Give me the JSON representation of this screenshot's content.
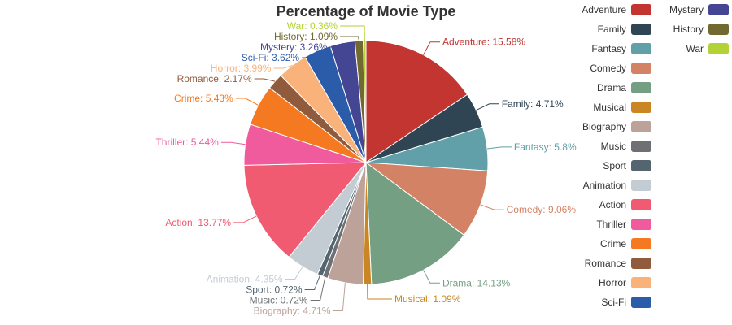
{
  "chart_data": {
    "type": "pie",
    "title": "Percentage of Movie Type",
    "slices": [
      {
        "label": "Adventure",
        "value": 15.58,
        "display": "15.58%",
        "color": "#c23531"
      },
      {
        "label": "Family",
        "value": 4.71,
        "display": "4.71%",
        "color": "#2f4554"
      },
      {
        "label": "Fantasy",
        "value": 5.8,
        "display": "5.8%",
        "color": "#61a0a8"
      },
      {
        "label": "Comedy",
        "value": 9.06,
        "display": "9.06%",
        "color": "#d48265"
      },
      {
        "label": "Drama",
        "value": 14.13,
        "display": "14.13%",
        "color": "#749f83"
      },
      {
        "label": "Musical",
        "value": 1.09,
        "display": "1.09%",
        "color": "#ca8622"
      },
      {
        "label": "Biography",
        "value": 4.71,
        "display": "4.71%",
        "color": "#bda29a"
      },
      {
        "label": "Music",
        "value": 0.72,
        "display": "0.72%",
        "color": "#6e7074"
      },
      {
        "label": "Sport",
        "value": 0.72,
        "display": "0.72%",
        "color": "#546570"
      },
      {
        "label": "Animation",
        "value": 4.35,
        "display": "4.35%",
        "color": "#c4ccd3"
      },
      {
        "label": "Action",
        "value": 13.77,
        "display": "13.77%",
        "color": "#f05b72"
      },
      {
        "label": "Thriller",
        "value": 5.44,
        "display": "5.44%",
        "color": "#ef5b9c"
      },
      {
        "label": "Crime",
        "value": 5.43,
        "display": "5.43%",
        "color": "#f47920"
      },
      {
        "label": "Romance",
        "value": 2.17,
        "display": "2.17%",
        "color": "#905a3d"
      },
      {
        "label": "Horror",
        "value": 3.99,
        "display": "3.99%",
        "color": "#fab27b"
      },
      {
        "label": "Sci-Fi",
        "value": 3.62,
        "display": "3.62%",
        "color": "#2a5caa"
      },
      {
        "label": "Mystery",
        "value": 3.26,
        "display": "3.26%",
        "color": "#444693"
      },
      {
        "label": "History",
        "value": 1.09,
        "display": "1.09%",
        "color": "#726930"
      },
      {
        "label": "War",
        "value": 0.36,
        "display": "0.36%",
        "color": "#b2d235"
      }
    ],
    "legend_placement": "right"
  }
}
